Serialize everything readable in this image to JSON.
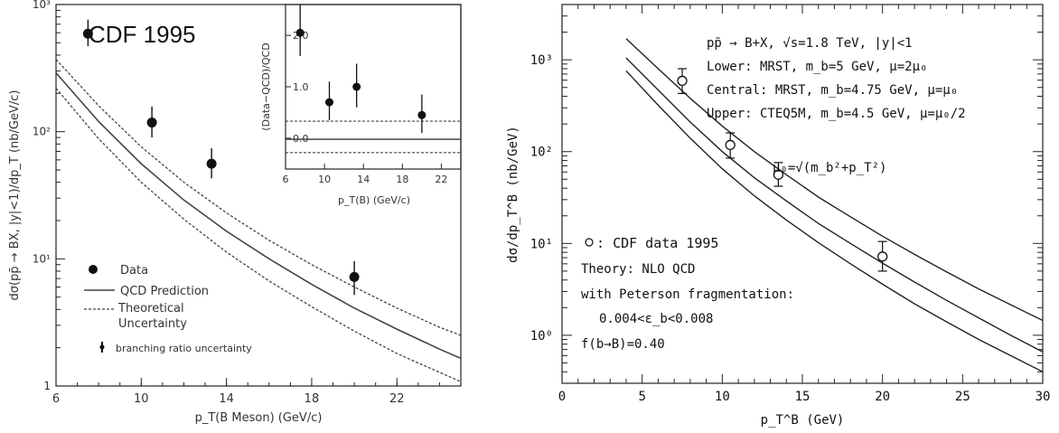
{
  "chart_data": [
    {
      "type": "scatter",
      "title": "CDF 1995",
      "xlabel": "p_T(B Meson) (GeV/c)",
      "ylabel": "dσ(pp̄ → BX, |y|<1)/dp_T (nb/GeV/c)",
      "xlim": [
        6,
        25
      ],
      "ylim": [
        1,
        1000
      ],
      "yscale": "log",
      "xticks": [
        "6",
        "10",
        "14",
        "18",
        "22"
      ],
      "yticks": [
        "1",
        "10¹",
        "10²",
        "10³"
      ],
      "legend": [
        "Data",
        "QCD Prediction",
        "Theoretical Uncertainty",
        "branching ratio uncertainty"
      ],
      "legend_placement": "bottom-left",
      "series": [
        {
          "name": "Data",
          "x": [
            7.5,
            10.5,
            13.3,
            20.0
          ],
          "y": [
            590,
            118,
            56,
            7.2
          ],
          "err_lo": [
            470,
            90,
            43,
            5.2
          ],
          "err_hi": [
            760,
            158,
            74,
            9.6
          ]
        },
        {
          "name": "QCD Prediction",
          "x": [
            6,
            8,
            10,
            12,
            14,
            16,
            18,
            20,
            22,
            24,
            25
          ],
          "y": [
            290,
            120,
            56,
            29,
            16.5,
            10,
            6.3,
            4.1,
            2.8,
            1.95,
            1.65
          ]
        },
        {
          "name": "Theoretical Uncertainty",
          "x": [
            6,
            8,
            10,
            12,
            14,
            16,
            18,
            20,
            22,
            24,
            25
          ],
          "y": [
            370,
            160,
            76,
            40,
            23,
            14,
            9,
            6,
            4.1,
            2.9,
            2.5
          ]
        },
        {
          "name": "",
          "x": [
            6,
            8,
            10,
            12,
            14,
            16,
            18,
            20,
            22,
            24,
            25
          ],
          "y": [
            220,
            88,
            40,
            20.5,
            11.3,
            6.7,
            4.2,
            2.7,
            1.8,
            1.28,
            1.08
          ]
        }
      ],
      "inset": {
        "xlabel": "p_T(B) (GeV/c)",
        "ylabel": "(Data−QCD)/QCD",
        "xlim": [
          6,
          24
        ],
        "ylim": [
          -0.6,
          2.6
        ],
        "xticks": [
          "6",
          "10",
          "14",
          "18",
          "22"
        ],
        "yticks": [
          "0.0",
          "1.0",
          "2.0"
        ],
        "points": {
          "x": [
            7.5,
            10.5,
            13.3,
            20.0
          ],
          "y": [
            2.05,
            0.7,
            1.0,
            0.45
          ],
          "err_lo": [
            1.6,
            0.35,
            0.6,
            0.1
          ],
          "err_hi": [
            2.6,
            1.1,
            1.45,
            0.85
          ]
        },
        "upper_dashed": 0.33,
        "solid": -0.02,
        "lower_dashed": -0.28
      }
    },
    {
      "type": "scatter",
      "xlabel": "p_T^B (GeV)",
      "ylabel": "dσ/dp_T^B (nb/GeV)",
      "xlim": [
        0,
        30
      ],
      "ylim": [
        0.3,
        4000
      ],
      "yscale": "log",
      "xticks": [
        "0",
        "5",
        "10",
        "15",
        "20",
        "25",
        "30"
      ],
      "yticks": [
        "10⁰",
        "10¹",
        "10²",
        "10³"
      ],
      "annotations": [
        "pp̄ → B+X, √s=1.8 TeV, |y|<1",
        "Lower: MRST, m_b=5 GeV, μ=2μ₀",
        "Central: MRST, m_b=4.75 GeV, μ=μ₀",
        "Upper: CTEQ5M, m_b=4.5 GeV, μ=μ₀/2",
        "μ₀=√(m_b²+p_T²)",
        "CDF data 1995",
        "Theory: NLO QCD",
        "with Peterson fragmentation:",
        "0.004<ε_b<0.008",
        "f(b→B)=0.40"
      ],
      "series": [
        {
          "name": "CDF data 1995",
          "x": [
            7.5,
            10.5,
            13.5,
            20.0
          ],
          "y": [
            590,
            118,
            56,
            7.2
          ],
          "err_lo": [
            430,
            85,
            42,
            5.0
          ],
          "err_hi": [
            800,
            160,
            76,
            10.5
          ]
        },
        {
          "name": "Upper",
          "x": [
            4,
            6,
            8,
            10,
            12,
            14,
            16,
            18,
            20,
            22,
            24,
            26,
            28,
            30
          ],
          "y": [
            1700,
            800,
            380,
            190,
            100,
            56,
            32,
            19.5,
            12,
            7.6,
            4.9,
            3.2,
            2.15,
            1.45
          ]
        },
        {
          "name": "Central",
          "x": [
            4,
            6,
            8,
            10,
            12,
            14,
            16,
            18,
            20,
            22,
            24,
            26,
            28,
            30
          ],
          "y": [
            1050,
            470,
            210,
            100,
            52,
            29,
            16.5,
            10,
            6.1,
            3.8,
            2.4,
            1.55,
            1.0,
            0.66
          ]
        },
        {
          "name": "Lower",
          "x": [
            4,
            6,
            8,
            10,
            12,
            14,
            16,
            18,
            20,
            22,
            24,
            26,
            28,
            30
          ],
          "y": [
            760,
            320,
            140,
            65,
            33,
            18,
            10.2,
            6,
            3.6,
            2.2,
            1.4,
            0.9,
            0.6,
            0.4
          ]
        }
      ]
    }
  ]
}
